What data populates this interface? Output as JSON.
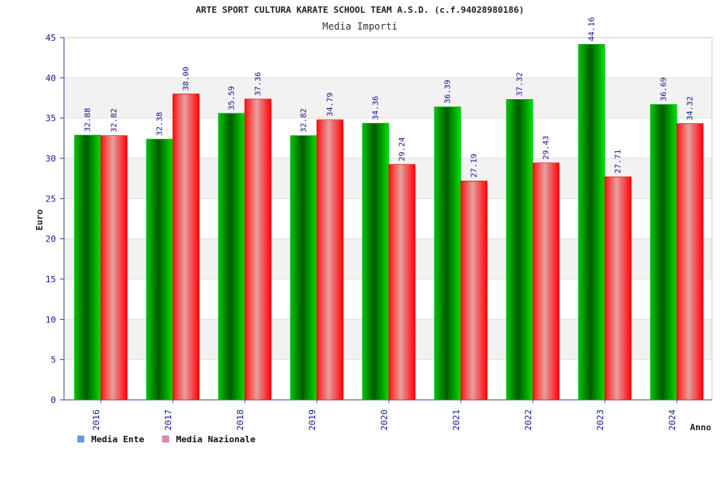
{
  "chart_data": {
    "type": "bar",
    "title": "ARTE SPORT CULTURA KARATE SCHOOL TEAM A.S.D. (c.f.94028980186)",
    "subtitle": "Media Importi",
    "xlabel": "Anno",
    "ylabel": "Euro",
    "ylim": [
      0,
      45
    ],
    "yticks": [
      "0",
      "5",
      "10",
      "15",
      "20",
      "25",
      "30",
      "35",
      "40",
      "45"
    ],
    "categories": [
      "2016",
      "2017",
      "2018",
      "2019",
      "2020",
      "2021",
      "2022",
      "2023",
      "2024"
    ],
    "series": [
      {
        "name": "Media Ente",
        "color": "#00b000",
        "values": [
          32.88,
          32.38,
          35.59,
          32.82,
          34.36,
          36.39,
          37.32,
          44.16,
          36.69
        ],
        "labels": [
          "32.88",
          "32.38",
          "35.59",
          "32.82",
          "34.36",
          "36.39",
          "37.32",
          "44.16",
          "36.69"
        ]
      },
      {
        "name": "Media Nazionale",
        "color": "#ff0000",
        "values": [
          32.82,
          38.0,
          37.36,
          34.79,
          29.24,
          27.19,
          29.43,
          27.71,
          34.32
        ],
        "labels": [
          "32.82",
          "38.00",
          "37.36",
          "34.79",
          "29.24",
          "27.19",
          "29.43",
          "27.71",
          "34.32"
        ]
      }
    ],
    "legend": {
      "position": "bottom-left",
      "colors": [
        "#6699dd",
        "#dd88bb"
      ]
    },
    "grid": true,
    "band_color": "#f2f2f2"
  }
}
